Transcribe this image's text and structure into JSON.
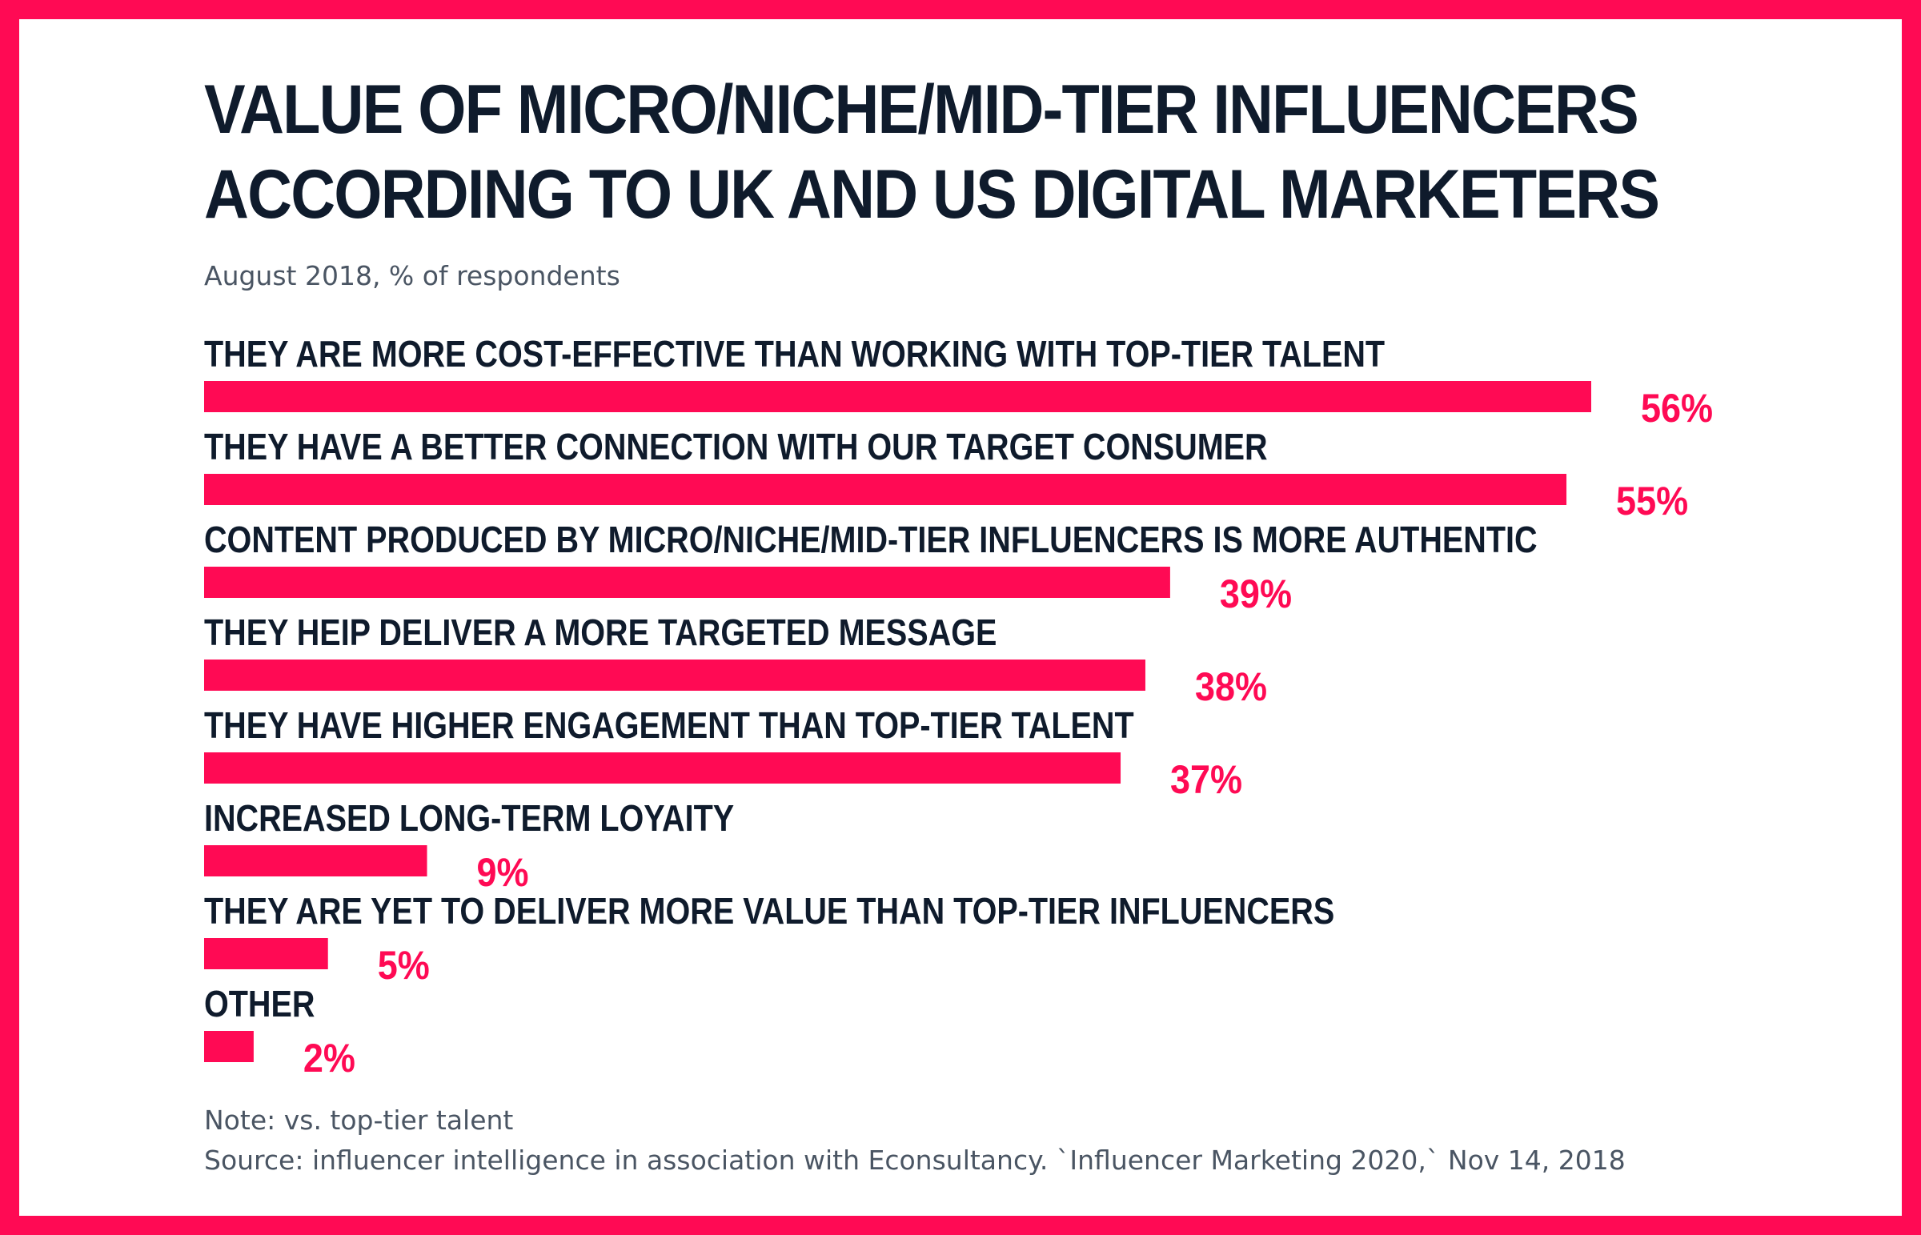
{
  "colors": {
    "frame": "#ff0a54",
    "bar": "#ff0a54",
    "title": "#0f1b2c",
    "muted": "#4a5563"
  },
  "header": {
    "title_line1": "VALUE OF MICRO/NICHE/MID-TIER INFLUENCERS",
    "title_line2": "ACCORDING TO UK AND US DIGITAL MARKETERS",
    "subtitle": "August 2018, % of respondents"
  },
  "chart_data": {
    "type": "bar",
    "orientation": "horizontal",
    "title": "VALUE OF MICRO/NICHE/MID-TIER INFLUENCERS ACCORDING TO UK AND US DIGITAL MARKETERS",
    "subtitle": "August 2018, % of respondents",
    "xlabel": "",
    "ylabel": "",
    "unit": "%",
    "xlim": [
      0,
      56
    ],
    "categories": [
      "THEY ARE MORE COST-EFFECTIVE THAN WORKING WITH TOP-TIER TALENT",
      "THEY HAVE A BETTER CONNECTION WITH OUR TARGET CONSUMER",
      "CONTENT PRODUCED BY MICRO/NICHE/MID-TIER INFLUENCERS IS MORE AUTHENTIC",
      "THEY HEIP DELIVER A MORE TARGETED MESSAGE",
      "THEY HAVE HIGHER ENGAGEMENT THAN TOP-TIER TALENT",
      "INCREASED LONG-TERM LOYAITY",
      "THEY ARE YET TO DELIVER MORE VALUE THAN TOP-TIER INFLUENCERS",
      "OTHER"
    ],
    "values": [
      56,
      55,
      39,
      38,
      37,
      9,
      5,
      2
    ],
    "value_labels": [
      "56%",
      "55%",
      "39%",
      "38%",
      "37%",
      "9%",
      "5%",
      "2%"
    ]
  },
  "footer": {
    "note": "Note: vs. top-tier talent",
    "source": "Source: influencer intelligence in association with Econsultancy. ˋInfluencer Marketing 2020,ˋ Nov 14, 2018"
  }
}
